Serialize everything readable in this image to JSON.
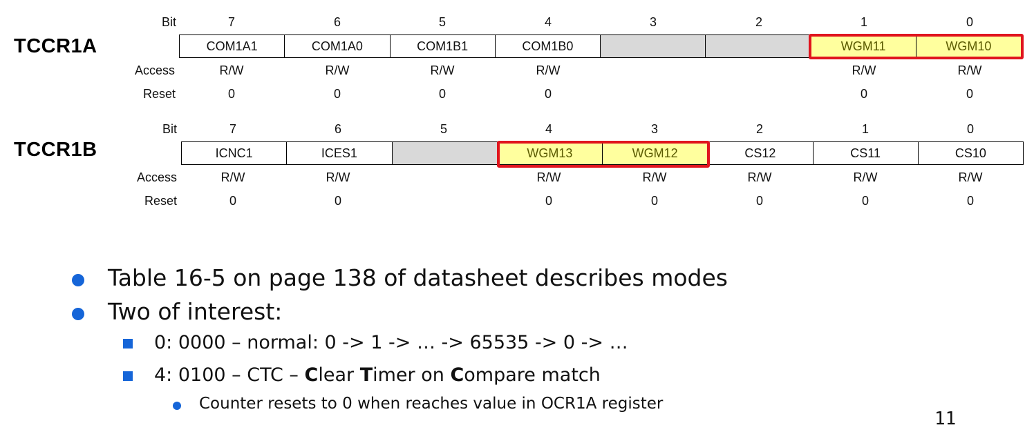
{
  "registers": [
    {
      "name": "TCCR1A",
      "bit_label": "Bit",
      "access_label": "Access",
      "reset_label": "Reset",
      "bit_numbers": [
        "7",
        "6",
        "5",
        "4",
        "3",
        "2",
        "1",
        "0"
      ],
      "fields": [
        "COM1A1",
        "COM1A0",
        "COM1B1",
        "COM1B0",
        "",
        "",
        "WGM11",
        "WGM10"
      ],
      "reserved": [
        false,
        false,
        false,
        false,
        true,
        true,
        false,
        false
      ],
      "highlighted": [
        false,
        false,
        false,
        false,
        false,
        false,
        true,
        true
      ],
      "access": [
        "R/W",
        "R/W",
        "R/W",
        "R/W",
        "",
        "",
        "R/W",
        "R/W"
      ],
      "reset": [
        "0",
        "0",
        "0",
        "0",
        "",
        "",
        "0",
        "0"
      ]
    },
    {
      "name": "TCCR1B",
      "bit_label": "Bit",
      "access_label": "Access",
      "reset_label": "Reset",
      "bit_numbers": [
        "7",
        "6",
        "5",
        "4",
        "3",
        "2",
        "1",
        "0"
      ],
      "fields": [
        "ICNC1",
        "ICES1",
        "",
        "WGM13",
        "WGM12",
        "CS12",
        "CS11",
        "CS10"
      ],
      "reserved": [
        false,
        false,
        true,
        false,
        false,
        false,
        false,
        false
      ],
      "highlighted": [
        false,
        false,
        false,
        true,
        true,
        false,
        false,
        false
      ],
      "access": [
        "R/W",
        "R/W",
        "",
        "R/W",
        "R/W",
        "R/W",
        "R/W",
        "R/W"
      ],
      "reset": [
        "0",
        "0",
        "",
        "0",
        "0",
        "0",
        "0",
        "0"
      ]
    }
  ],
  "bullets": {
    "level1": [
      "Table 16-5 on page 138 of datasheet describes modes",
      "Two of interest:"
    ],
    "mode0": "0: 0000 – normal: 0 -> 1 -> … -> 65535 -> 0 -> …",
    "mode4": {
      "prefix": "4: 0100 – CTC – ",
      "c1": "C",
      "w1": "lear ",
      "t": "T",
      "w2": "imer on ",
      "c2": "C",
      "w3": "ompare match"
    },
    "sub": "Counter resets to 0 when reaches value in OCR1A register"
  },
  "page_number": "11",
  "colors": {
    "highlight_fill": "#ffff9e",
    "highlight_frame": "#e0141e",
    "reserved_fill": "#d9d9d9",
    "bullet": "#1565d8"
  }
}
